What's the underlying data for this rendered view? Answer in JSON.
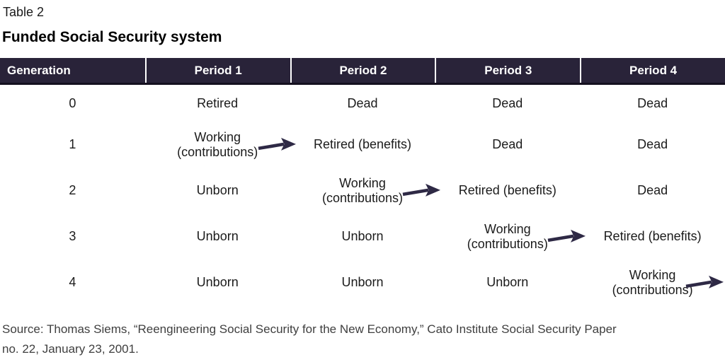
{
  "document": {
    "table_label": "Table 2",
    "title": "Funded Social Security system",
    "source_lines": [
      "Source: Thomas Siems, “Reengineering Social Security for the New Economy,” Cato Institute Social Security Paper",
      "no. 22, January 23, 2001."
    ]
  },
  "table": {
    "columns": [
      "Generation",
      "Period 1",
      "Period 2",
      "Period 3",
      "Period 4"
    ],
    "rows": [
      {
        "generation": "0",
        "cells": [
          {
            "text": "Retired"
          },
          {
            "text": "Dead"
          },
          {
            "text": "Dead"
          },
          {
            "text": "Dead"
          }
        ]
      },
      {
        "generation": "1",
        "cells": [
          {
            "lines": [
              "Working",
              "(contributions)"
            ],
            "arrow_to_next": true
          },
          {
            "text": "Retired (benefits)"
          },
          {
            "text": "Dead"
          },
          {
            "text": "Dead"
          }
        ]
      },
      {
        "generation": "2",
        "cells": [
          {
            "text": "Unborn"
          },
          {
            "lines": [
              "Working",
              "(contributions)"
            ],
            "arrow_to_next": true
          },
          {
            "text": "Retired (benefits)"
          },
          {
            "text": "Dead"
          }
        ]
      },
      {
        "generation": "3",
        "cells": [
          {
            "text": "Unborn"
          },
          {
            "text": "Unborn"
          },
          {
            "lines": [
              "Working",
              "(contributions)"
            ],
            "arrow_to_next": true
          },
          {
            "text": "Retired (benefits)"
          }
        ]
      },
      {
        "generation": "4",
        "cells": [
          {
            "text": "Unborn"
          },
          {
            "text": "Unborn"
          },
          {
            "text": "Unborn"
          },
          {
            "lines": [
              "Working",
              "(contributions)"
            ],
            "arrow_to_next": true
          }
        ]
      }
    ],
    "colors": {
      "header_bg": "#292339",
      "header_text": "#ffffff",
      "header_border": "#14101f",
      "body_text": "#1b1b1b",
      "arrow": "#2e2945"
    }
  }
}
